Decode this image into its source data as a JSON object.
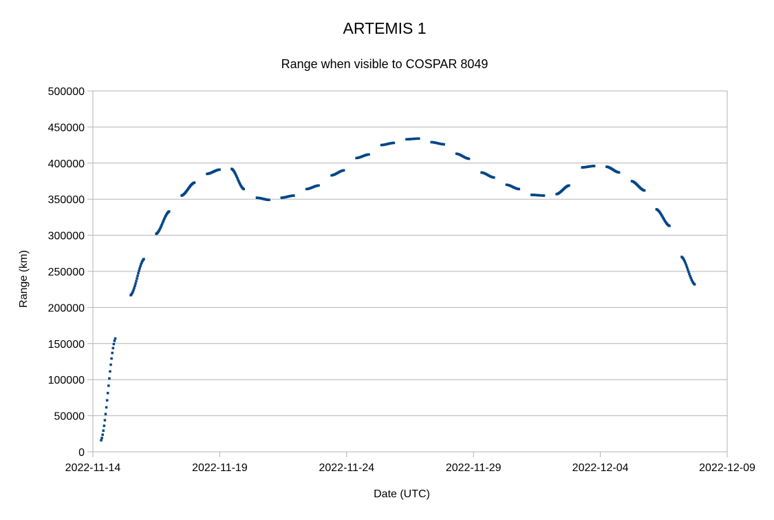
{
  "chart_data": {
    "type": "scatter",
    "title": "ARTEMIS 1",
    "subtitle": "Range when visible to COSPAR 8049",
    "xlabel": "Date (UTC)",
    "ylabel": "Range (km)",
    "x_type": "date",
    "xlim": [
      "2022-11-14",
      "2022-12-09"
    ],
    "x_ticks": [
      "2022-11-14",
      "2022-11-19",
      "2022-11-24",
      "2022-11-29",
      "2022-12-04",
      "2022-12-09"
    ],
    "ylim": [
      0,
      500000
    ],
    "y_ticks": [
      0,
      50000,
      100000,
      150000,
      200000,
      250000,
      300000,
      350000,
      400000,
      450000,
      500000
    ],
    "grid": "horizontal",
    "legend": "none",
    "point_color": "#004586",
    "series": [
      {
        "arcs": [
          {
            "start": "2022-11-14T07:50",
            "end": "2022-11-14T21:10",
            "y_start": 16000,
            "y_end": 157000,
            "points": 20
          },
          {
            "start": "2022-11-15T11:50",
            "end": "2022-11-16T00:10",
            "y_start": 217000,
            "y_end": 267000,
            "points": 20
          },
          {
            "start": "2022-11-16T12:00",
            "end": "2022-11-17T00:05",
            "y_start": 302000,
            "y_end": 333000,
            "points": 20
          },
          {
            "start": "2022-11-17T12:00",
            "end": "2022-11-18T00:00",
            "y_start": 355000,
            "y_end": 373000,
            "points": 20
          },
          {
            "start": "2022-11-18T12:00",
            "end": "2022-11-18T23:50",
            "y_start": 385000,
            "y_end": 391000,
            "points": 18
          },
          {
            "start": "2022-11-19T11:20",
            "end": "2022-11-19T22:40",
            "y_start": 392000,
            "y_end": 364000,
            "points": 18
          },
          {
            "start": "2022-11-20T11:10",
            "end": "2022-11-20T22:40",
            "y_start": 352000,
            "y_end": 349000,
            "points": 18
          },
          {
            "start": "2022-11-21T10:30",
            "end": "2022-11-21T22:00",
            "y_start": 352000,
            "y_end": 355000,
            "points": 16
          },
          {
            "start": "2022-11-22T10:10",
            "end": "2022-11-22T21:30",
            "y_start": 364000,
            "y_end": 369000,
            "points": 14
          },
          {
            "start": "2022-11-23T09:50",
            "end": "2022-11-23T21:20",
            "y_start": 383000,
            "y_end": 390000,
            "points": 14
          },
          {
            "start": "2022-11-24T09:20",
            "end": "2022-11-24T21:00",
            "y_start": 407000,
            "y_end": 412000,
            "points": 14
          },
          {
            "start": "2022-11-25T09:00",
            "end": "2022-11-25T20:40",
            "y_start": 425000,
            "y_end": 428000,
            "points": 14
          },
          {
            "start": "2022-11-26T08:40",
            "end": "2022-11-26T20:20",
            "y_start": 433000,
            "y_end": 434000,
            "points": 14
          },
          {
            "start": "2022-11-27T08:20",
            "end": "2022-11-27T20:00",
            "y_start": 429000,
            "y_end": 426000,
            "points": 14
          },
          {
            "start": "2022-11-28T08:00",
            "end": "2022-11-28T19:40",
            "y_start": 413000,
            "y_end": 406000,
            "points": 14
          },
          {
            "start": "2022-11-29T07:40",
            "end": "2022-11-29T19:20",
            "y_start": 387000,
            "y_end": 380000,
            "points": 14
          },
          {
            "start": "2022-11-30T07:20",
            "end": "2022-11-30T19:00",
            "y_start": 370000,
            "y_end": 364000,
            "points": 14
          },
          {
            "start": "2022-12-01T07:00",
            "end": "2022-12-01T18:40",
            "y_start": 356000,
            "y_end": 355000,
            "points": 16
          },
          {
            "start": "2022-12-02T06:40",
            "end": "2022-12-02T18:20",
            "y_start": 357000,
            "y_end": 369000,
            "points": 18
          },
          {
            "start": "2022-12-03T06:50",
            "end": "2022-12-03T18:10",
            "y_start": 394000,
            "y_end": 396000,
            "points": 18
          },
          {
            "start": "2022-12-04T06:00",
            "end": "2022-12-04T17:40",
            "y_start": 395000,
            "y_end": 387000,
            "points": 18
          },
          {
            "start": "2022-12-05T05:50",
            "end": "2022-12-05T17:40",
            "y_start": 375000,
            "y_end": 362000,
            "points": 18
          },
          {
            "start": "2022-12-06T05:10",
            "end": "2022-12-06T17:20",
            "y_start": 336000,
            "y_end": 313000,
            "points": 18
          },
          {
            "start": "2022-12-07T05:00",
            "end": "2022-12-07T17:10",
            "y_start": 270000,
            "y_end": 232000,
            "points": 18
          }
        ]
      }
    ]
  }
}
